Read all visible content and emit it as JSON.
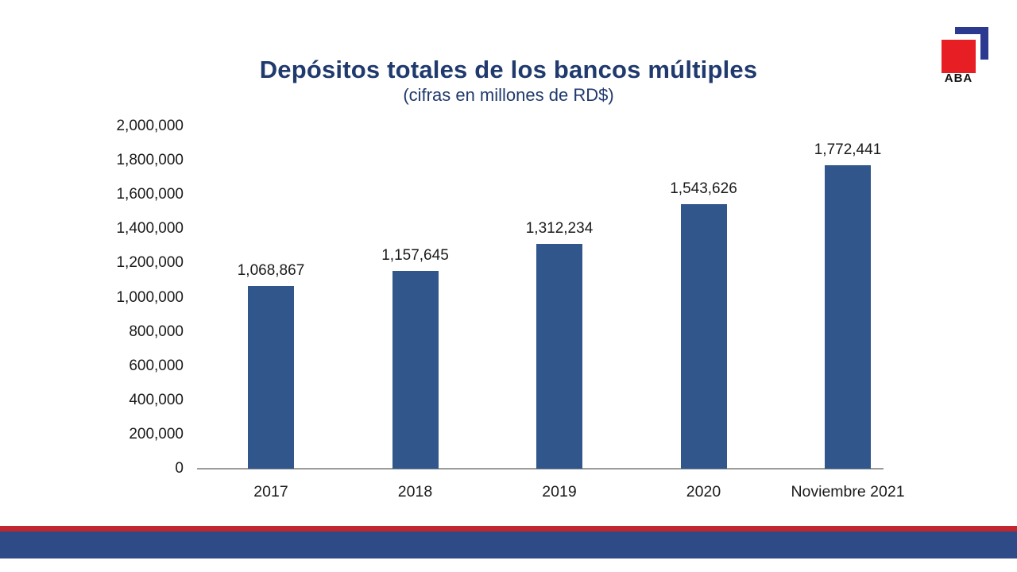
{
  "header": {
    "title": "Depósitos totales de los bancos múltiples",
    "subtitle": "(cifras en millones de RD$)"
  },
  "logo": {
    "text": "ABA",
    "square_color": "#E81E25",
    "bracket_color": "#2B3990"
  },
  "chart_data": {
    "type": "bar",
    "title": "Depósitos totales de los bancos múltiples",
    "subtitle": "(cifras en millones de RD$)",
    "categories": [
      "2017",
      "2018",
      "2019",
      "2020",
      "Noviembre 2021"
    ],
    "values": [
      1068867,
      1157645,
      1312234,
      1543626,
      1772441
    ],
    "value_labels": [
      "1,068,867",
      "1,157,645",
      "1,312,234",
      "1,543,626",
      "1,772,441"
    ],
    "ylim": [
      0,
      2000000
    ],
    "ytick_step": 200000,
    "ytick_labels": [
      "0",
      "200,000",
      "400,000",
      "600,000",
      "800,000",
      "1,000,000",
      "1,200,000",
      "1,400,000",
      "1,600,000",
      "1,800,000",
      "2,000,000"
    ],
    "xlabel": "",
    "ylabel": "",
    "grid": false,
    "legend": "none",
    "bar_color": "#30568C",
    "axis_color": "#9B9B9B",
    "label_color": "#1A1A1A"
  },
  "footer": {
    "red_stripe_color": "#C2262E",
    "blue_bar_color": "#2E4A87"
  },
  "colors": {
    "title_text": "#203A6E",
    "background": "#FFFFFF"
  }
}
